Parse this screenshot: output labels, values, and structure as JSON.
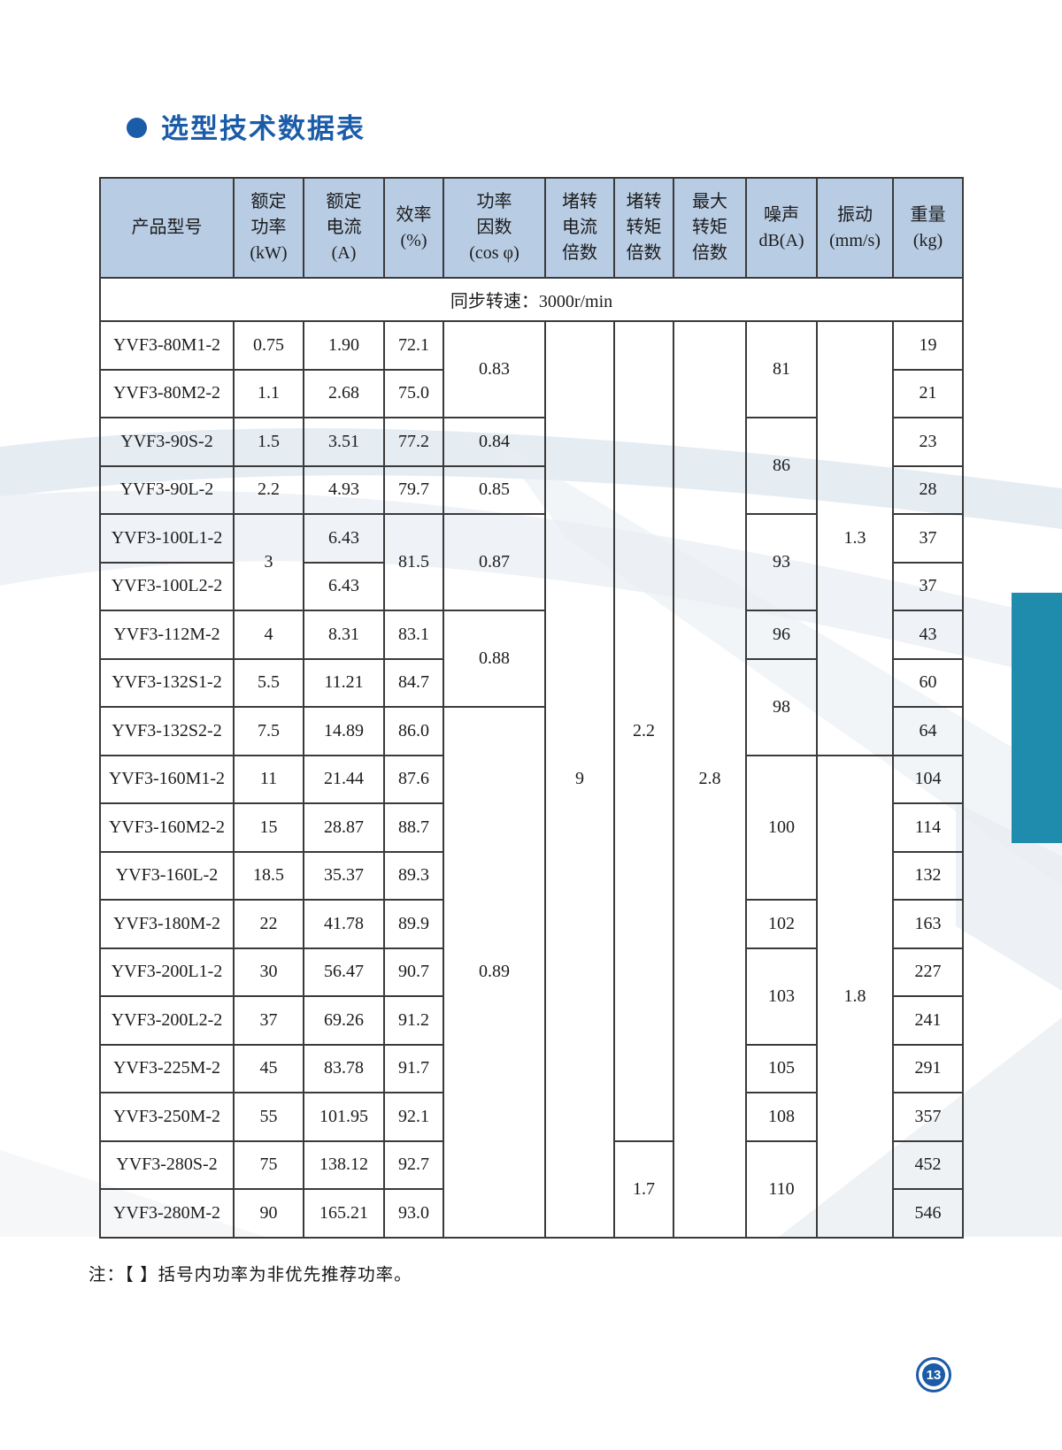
{
  "page": {
    "title": "选型技术数据表",
    "note": "注：【 】括号内功率为非优先推荐功率。",
    "page_number": "13",
    "colors": {
      "accent_blue": "#1b5ca8",
      "header_bg": "#b8cce4",
      "teal_block": "#1f8cae",
      "table_border": "#3a3a3a"
    }
  },
  "table": {
    "subtitle": "同步转速：3000r/min",
    "headers": [
      {
        "id": "model",
        "lines": [
          "产品型号"
        ]
      },
      {
        "id": "rated-power",
        "lines": [
          "额定",
          "功率",
          "(kW)"
        ]
      },
      {
        "id": "rated-current",
        "lines": [
          "额定",
          "电流",
          "(A)"
        ]
      },
      {
        "id": "efficiency",
        "lines": [
          "效率",
          "(%)"
        ]
      },
      {
        "id": "power-factor",
        "lines": [
          "功率",
          "因数",
          "(cos φ)"
        ]
      },
      {
        "id": "locked-rotor-current-ratio",
        "lines": [
          "堵转",
          "电流",
          "倍数"
        ]
      },
      {
        "id": "locked-rotor-torque-ratio",
        "lines": [
          "堵转",
          "转矩",
          "倍数"
        ]
      },
      {
        "id": "max-torque-ratio",
        "lines": [
          "最大",
          "转矩",
          "倍数"
        ]
      },
      {
        "id": "noise",
        "lines": [
          "噪声",
          "dB(A)"
        ]
      },
      {
        "id": "vibration",
        "lines": [
          "振动",
          "(mm/s)"
        ]
      },
      {
        "id": "weight",
        "lines": [
          "重量",
          "(kg)"
        ]
      }
    ],
    "rows": [
      {
        "cells": [
          {
            "v": "YVF3-80M1-2",
            "n": "cell-model"
          },
          {
            "v": "0.75"
          },
          {
            "v": "1.90"
          },
          {
            "v": "72.1"
          },
          {
            "v": "0.83",
            "rs": 2
          },
          {
            "v": "9",
            "rs": 19
          },
          {
            "v": "2.2",
            "rs": 17
          },
          {
            "v": "2.8",
            "rs": 19
          },
          {
            "v": "81",
            "rs": 2
          },
          {
            "v": "1.3",
            "rs": 9
          },
          {
            "v": "19"
          }
        ]
      },
      {
        "cells": [
          {
            "v": "YVF3-80M2-2",
            "n": "cell-model"
          },
          {
            "v": "1.1"
          },
          {
            "v": "2.68"
          },
          {
            "v": "75.0"
          },
          {
            "v": "21"
          }
        ]
      },
      {
        "cells": [
          {
            "v": "YVF3-90S-2",
            "n": "cell-model"
          },
          {
            "v": "1.5"
          },
          {
            "v": "3.51"
          },
          {
            "v": "77.2"
          },
          {
            "v": "0.84"
          },
          {
            "v": "86",
            "rs": 2
          },
          {
            "v": "23"
          }
        ]
      },
      {
        "cells": [
          {
            "v": "YVF3-90L-2",
            "n": "cell-model"
          },
          {
            "v": "2.2"
          },
          {
            "v": "4.93"
          },
          {
            "v": "79.7"
          },
          {
            "v": "0.85"
          },
          {
            "v": "28"
          }
        ]
      },
      {
        "cells": [
          {
            "v": "YVF3-100L1-2",
            "n": "cell-model"
          },
          {
            "v": "3",
            "rs": 2
          },
          {
            "v": "6.43"
          },
          {
            "v": "81.5",
            "rs": 2
          },
          {
            "v": "0.87",
            "rs": 2
          },
          {
            "v": "93",
            "rs": 2
          },
          {
            "v": "37"
          }
        ]
      },
      {
        "cells": [
          {
            "v": "YVF3-100L2-2",
            "n": "cell-model"
          },
          {
            "v": "6.43"
          },
          {
            "v": "37"
          }
        ]
      },
      {
        "cells": [
          {
            "v": "YVF3-112M-2",
            "n": "cell-model"
          },
          {
            "v": "4"
          },
          {
            "v": "8.31"
          },
          {
            "v": "83.1"
          },
          {
            "v": "0.88",
            "rs": 2
          },
          {
            "v": "96"
          },
          {
            "v": "43"
          }
        ]
      },
      {
        "cells": [
          {
            "v": "YVF3-132S1-2",
            "n": "cell-model"
          },
          {
            "v": "5.5"
          },
          {
            "v": "11.21"
          },
          {
            "v": "84.7"
          },
          {
            "v": "98",
            "rs": 2
          },
          {
            "v": "60"
          }
        ]
      },
      {
        "cells": [
          {
            "v": "YVF3-132S2-2",
            "n": "cell-model"
          },
          {
            "v": "7.5"
          },
          {
            "v": "14.89"
          },
          {
            "v": "86.0"
          },
          {
            "v": "0.89",
            "rs": 11
          },
          {
            "v": "64"
          }
        ]
      },
      {
        "cells": [
          {
            "v": "YVF3-160M1-2",
            "n": "cell-model"
          },
          {
            "v": "11"
          },
          {
            "v": "21.44"
          },
          {
            "v": "87.6"
          },
          {
            "v": "100",
            "rs": 3
          },
          {
            "v": "1.8",
            "rs": 10
          },
          {
            "v": "104"
          }
        ]
      },
      {
        "cells": [
          {
            "v": "YVF3-160M2-2",
            "n": "cell-model"
          },
          {
            "v": "15"
          },
          {
            "v": "28.87"
          },
          {
            "v": "88.7"
          },
          {
            "v": "114"
          }
        ]
      },
      {
        "cells": [
          {
            "v": "YVF3-160L-2",
            "n": "cell-model"
          },
          {
            "v": "18.5"
          },
          {
            "v": "35.37"
          },
          {
            "v": "89.3"
          },
          {
            "v": "132"
          }
        ]
      },
      {
        "cells": [
          {
            "v": "YVF3-180M-2",
            "n": "cell-model"
          },
          {
            "v": "22"
          },
          {
            "v": "41.78"
          },
          {
            "v": "89.9"
          },
          {
            "v": "102"
          },
          {
            "v": "163"
          }
        ]
      },
      {
        "cells": [
          {
            "v": "YVF3-200L1-2",
            "n": "cell-model"
          },
          {
            "v": "30"
          },
          {
            "v": "56.47"
          },
          {
            "v": "90.7"
          },
          {
            "v": "103",
            "rs": 2
          },
          {
            "v": "227"
          }
        ]
      },
      {
        "cells": [
          {
            "v": "YVF3-200L2-2",
            "n": "cell-model"
          },
          {
            "v": "37"
          },
          {
            "v": "69.26"
          },
          {
            "v": "91.2"
          },
          {
            "v": "241"
          }
        ]
      },
      {
        "cells": [
          {
            "v": "YVF3-225M-2",
            "n": "cell-model"
          },
          {
            "v": "45"
          },
          {
            "v": "83.78"
          },
          {
            "v": "91.7"
          },
          {
            "v": "105"
          },
          {
            "v": "291"
          }
        ]
      },
      {
        "cells": [
          {
            "v": "YVF3-250M-2",
            "n": "cell-model"
          },
          {
            "v": "55"
          },
          {
            "v": "101.95"
          },
          {
            "v": "92.1"
          },
          {
            "v": "108"
          },
          {
            "v": "357"
          }
        ]
      },
      {
        "cells": [
          {
            "v": "YVF3-280S-2",
            "n": "cell-model"
          },
          {
            "v": "75"
          },
          {
            "v": "138.12"
          },
          {
            "v": "92.7"
          },
          {
            "v": "1.7",
            "rs": 2
          },
          {
            "v": "110",
            "rs": 2
          },
          {
            "v": "452"
          }
        ]
      },
      {
        "cells": [
          {
            "v": "YVF3-280M-2",
            "n": "cell-model"
          },
          {
            "v": "90"
          },
          {
            "v": "165.21"
          },
          {
            "v": "93.0"
          },
          {
            "v": "546"
          }
        ]
      }
    ]
  }
}
